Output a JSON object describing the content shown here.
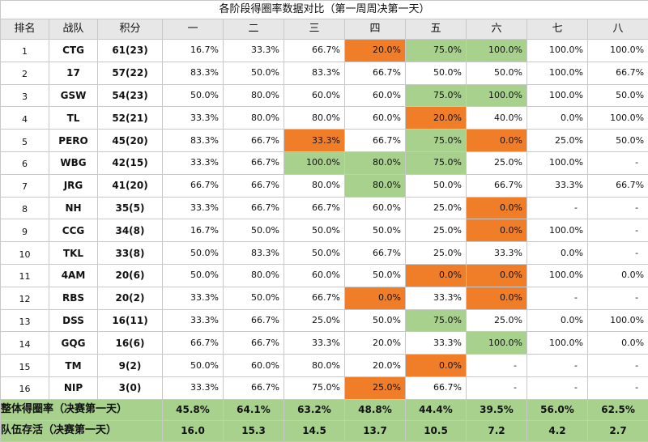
{
  "title": "各阶段得圈率数据对比（第一周周决第一天）",
  "headers": [
    "排名",
    "战队",
    "积分",
    "一",
    "二",
    "三",
    "四",
    "五",
    "六",
    "七",
    "八"
  ],
  "rows": [
    {
      "rank": "1",
      "team": "CTG",
      "points": "61(23)",
      "values": [
        "16.7%",
        "33.3%",
        "66.7%",
        "20.0%",
        "75.0%",
        "100.0%",
        "100.0%",
        "100.0%"
      ],
      "colors": [
        "",
        "",
        "",
        "orange",
        "green",
        "green",
        "",
        ""
      ]
    },
    {
      "rank": "2",
      "team": "17",
      "points": "57(22)",
      "values": [
        "83.3%",
        "50.0%",
        "83.3%",
        "66.7%",
        "50.0%",
        "50.0%",
        "100.0%",
        "66.7%"
      ],
      "colors": [
        "",
        "",
        "",
        "",
        "",
        "",
        "",
        ""
      ]
    },
    {
      "rank": "3",
      "team": "GSW",
      "points": "54(23)",
      "values": [
        "50.0%",
        "80.0%",
        "60.0%",
        "60.0%",
        "75.0%",
        "100.0%",
        "100.0%",
        "50.0%"
      ],
      "colors": [
        "",
        "",
        "",
        "",
        "green",
        "green",
        "",
        ""
      ]
    },
    {
      "rank": "4",
      "team": "TL",
      "points": "52(21)",
      "values": [
        "33.3%",
        "80.0%",
        "80.0%",
        "60.0%",
        "20.0%",
        "40.0%",
        "0.0%",
        "100.0%"
      ],
      "colors": [
        "",
        "",
        "",
        "",
        "orange",
        "",
        "",
        ""
      ]
    },
    {
      "rank": "5",
      "team": "PERO",
      "points": "45(20)",
      "values": [
        "83.3%",
        "66.7%",
        "33.3%",
        "66.7%",
        "75.0%",
        "0.0%",
        "25.0%",
        "50.0%"
      ],
      "colors": [
        "",
        "",
        "orange",
        "",
        "green",
        "orange",
        "",
        ""
      ]
    },
    {
      "rank": "6",
      "team": "WBG",
      "points": "42(15)",
      "values": [
        "33.3%",
        "66.7%",
        "100.0%",
        "80.0%",
        "75.0%",
        "25.0%",
        "100.0%",
        "-"
      ],
      "colors": [
        "",
        "",
        "green",
        "green",
        "green",
        "",
        "",
        ""
      ]
    },
    {
      "rank": "7",
      "team": "JRG",
      "points": "41(20)",
      "values": [
        "66.7%",
        "66.7%",
        "80.0%",
        "80.0%",
        "50.0%",
        "66.7%",
        "33.3%",
        "66.7%"
      ],
      "colors": [
        "",
        "",
        "",
        "green",
        "",
        "",
        "",
        ""
      ]
    },
    {
      "rank": "8",
      "team": "NH",
      "points": "35(5)",
      "values": [
        "33.3%",
        "66.7%",
        "66.7%",
        "60.0%",
        "25.0%",
        "0.0%",
        "-",
        "-"
      ],
      "colors": [
        "",
        "",
        "",
        "",
        "",
        "orange",
        "",
        ""
      ]
    },
    {
      "rank": "9",
      "team": "CCG",
      "points": "34(8)",
      "values": [
        "16.7%",
        "50.0%",
        "50.0%",
        "50.0%",
        "25.0%",
        "0.0%",
        "100.0%",
        "-"
      ],
      "colors": [
        "",
        "",
        "",
        "",
        "",
        "orange",
        "",
        ""
      ]
    },
    {
      "rank": "10",
      "team": "TKL",
      "points": "33(8)",
      "values": [
        "50.0%",
        "83.3%",
        "50.0%",
        "66.7%",
        "25.0%",
        "33.3%",
        "0.0%",
        "-"
      ],
      "colors": [
        "",
        "",
        "",
        "",
        "",
        "",
        "",
        ""
      ]
    },
    {
      "rank": "11",
      "team": "4AM",
      "points": "20(6)",
      "values": [
        "50.0%",
        "80.0%",
        "60.0%",
        "50.0%",
        "0.0%",
        "0.0%",
        "100.0%",
        "0.0%"
      ],
      "colors": [
        "",
        "",
        "",
        "",
        "orange",
        "orange",
        "",
        ""
      ]
    },
    {
      "rank": "12",
      "team": "RBS",
      "points": "20(2)",
      "values": [
        "33.3%",
        "50.0%",
        "66.7%",
        "0.0%",
        "33.3%",
        "0.0%",
        "-",
        "-"
      ],
      "colors": [
        "",
        "",
        "",
        "orange",
        "",
        "orange",
        "",
        ""
      ]
    },
    {
      "rank": "13",
      "team": "DSS",
      "points": "16(11)",
      "values": [
        "33.3%",
        "66.7%",
        "25.0%",
        "50.0%",
        "75.0%",
        "25.0%",
        "0.0%",
        "100.0%"
      ],
      "colors": [
        "",
        "",
        "",
        "",
        "green",
        "",
        "",
        ""
      ]
    },
    {
      "rank": "14",
      "team": "GQG",
      "points": "16(6)",
      "values": [
        "66.7%",
        "66.7%",
        "33.3%",
        "20.0%",
        "33.3%",
        "100.0%",
        "100.0%",
        "0.0%"
      ],
      "colors": [
        "",
        "",
        "",
        "",
        "",
        "green",
        "",
        ""
      ]
    },
    {
      "rank": "15",
      "team": "TM",
      "points": "9(2)",
      "values": [
        "50.0%",
        "60.0%",
        "80.0%",
        "20.0%",
        "0.0%",
        "-",
        "-",
        "-"
      ],
      "colors": [
        "",
        "",
        "",
        "",
        "orange",
        "",
        "",
        ""
      ]
    },
    {
      "rank": "16",
      "team": "NIP",
      "points": "3(0)",
      "values": [
        "33.3%",
        "66.7%",
        "75.0%",
        "25.0%",
        "66.7%",
        "-",
        "-",
        "-"
      ],
      "colors": [
        "",
        "",
        "",
        "orange",
        "",
        "",
        "",
        ""
      ]
    }
  ],
  "summary": [
    {
      "label": "整体得圈率（决赛第一天）",
      "values": [
        "45.8%",
        "64.1%",
        "63.2%",
        "48.8%",
        "44.4%",
        "39.5%",
        "56.0%",
        "62.5%"
      ]
    },
    {
      "label": "队伍存活（决赛第一天）",
      "values": [
        "16.0",
        "15.3",
        "14.5",
        "13.7",
        "10.5",
        "7.2",
        "4.2",
        "2.7"
      ]
    }
  ],
  "colors": {
    "orange": "#f07d28",
    "green": "#a9d18e",
    "header_bg": "#e7e7e7"
  }
}
